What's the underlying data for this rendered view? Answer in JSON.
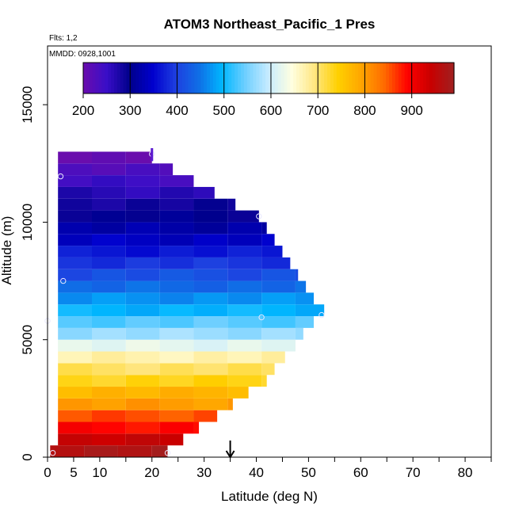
{
  "chart_data": {
    "type": "heatmap",
    "title": "ATOM3 Northeast_Pacific_1 Pres",
    "flights_label": "Flts: 1,2",
    "dates_label": "MMDD: 0928,1001",
    "xlabel": "Latitude (deg N)",
    "ylabel": "Altitude (m)",
    "xlim": [
      0,
      85
    ],
    "ylim": [
      0,
      17500
    ],
    "x_ticks": [
      0,
      5,
      10,
      20,
      30,
      40,
      50,
      60,
      70,
      80
    ],
    "x_minor_ticks": [
      15,
      25,
      35,
      45,
      55,
      65,
      75,
      85
    ],
    "y_ticks": [
      0,
      5000,
      10000,
      15000
    ],
    "grid": false,
    "colorbar": {
      "range": [
        200,
        990
      ],
      "ticks": [
        200,
        300,
        400,
        500,
        600,
        700,
        800,
        900
      ],
      "colors": [
        "#6a0dad",
        "#3a0ec8",
        "#00008b",
        "#0000cd",
        "#1e3fe0",
        "#0f6fe6",
        "#00b7ff",
        "#6fcfff",
        "#c8ecff",
        "#ffffe0",
        "#ffe680",
        "#ffd000",
        "#ffa500",
        "#ff6a00",
        "#ff0000",
        "#c80000",
        "#a02020"
      ]
    },
    "bin_height_m": 500,
    "bins": [
      {
        "alt": 0,
        "lat_max": 23,
        "value": 975
      },
      {
        "alt": 500,
        "lat_max": 26,
        "value": 945
      },
      {
        "alt": 1000,
        "lat_max": 29,
        "value": 890
      },
      {
        "alt": 1500,
        "lat_max": 32.5,
        "value": 855
      },
      {
        "alt": 2000,
        "lat_max": 35.5,
        "value": 800
      },
      {
        "alt": 2500,
        "lat_max": 38.5,
        "value": 775
      },
      {
        "alt": 3000,
        "lat_max": 42,
        "value": 735
      },
      {
        "alt": 3500,
        "lat_max": 43.5,
        "value": 705
      },
      {
        "alt": 4000,
        "lat_max": 45.5,
        "value": 670
      },
      {
        "alt": 4500,
        "lat_max": 47.5,
        "value": 620
      },
      {
        "alt": 5000,
        "lat_max": 49,
        "value": 570
      },
      {
        "alt": 5500,
        "lat_max": 51,
        "value": 535
      },
      {
        "alt": 6000,
        "lat_max": 53,
        "value": 495
      },
      {
        "alt": 6500,
        "lat_max": 51,
        "value": 470
      },
      {
        "alt": 7000,
        "lat_max": 49.5,
        "value": 440
      },
      {
        "alt": 7500,
        "lat_max": 48,
        "value": 415
      },
      {
        "alt": 8000,
        "lat_max": 46.5,
        "value": 390
      },
      {
        "alt": 8500,
        "lat_max": 45,
        "value": 365
      },
      {
        "alt": 9000,
        "lat_max": 43.5,
        "value": 340
      },
      {
        "alt": 9500,
        "lat_max": 42,
        "value": 320
      },
      {
        "alt": 10000,
        "lat_max": 40.5,
        "value": 300
      },
      {
        "alt": 10500,
        "lat_max": 36,
        "value": 285
      },
      {
        "alt": 11000,
        "lat_max": 32,
        "value": 265
      },
      {
        "alt": 11500,
        "lat_max": 28,
        "value": 245
      },
      {
        "alt": 12000,
        "lat_max": 24,
        "value": 225
      },
      {
        "alt": 12500,
        "lat_max": 20,
        "value": 205
      }
    ],
    "bins_lat_min": 2,
    "surface_band": {
      "alt": 0,
      "lat_min": 0.5
    },
    "markers": [
      {
        "lat": 1,
        "alt": 180
      },
      {
        "lat": 23,
        "alt": 180
      },
      {
        "lat": 2.5,
        "alt": 11950
      },
      {
        "lat": 40.5,
        "alt": 10250
      },
      {
        "lat": 3,
        "alt": 7500
      },
      {
        "lat": 41,
        "alt": 5950
      },
      {
        "lat": 52.5,
        "alt": 6050
      },
      {
        "lat": 0,
        "alt": 5800
      },
      {
        "lat": 20,
        "alt": 12900
      }
    ],
    "arrow_lat": 35
  }
}
